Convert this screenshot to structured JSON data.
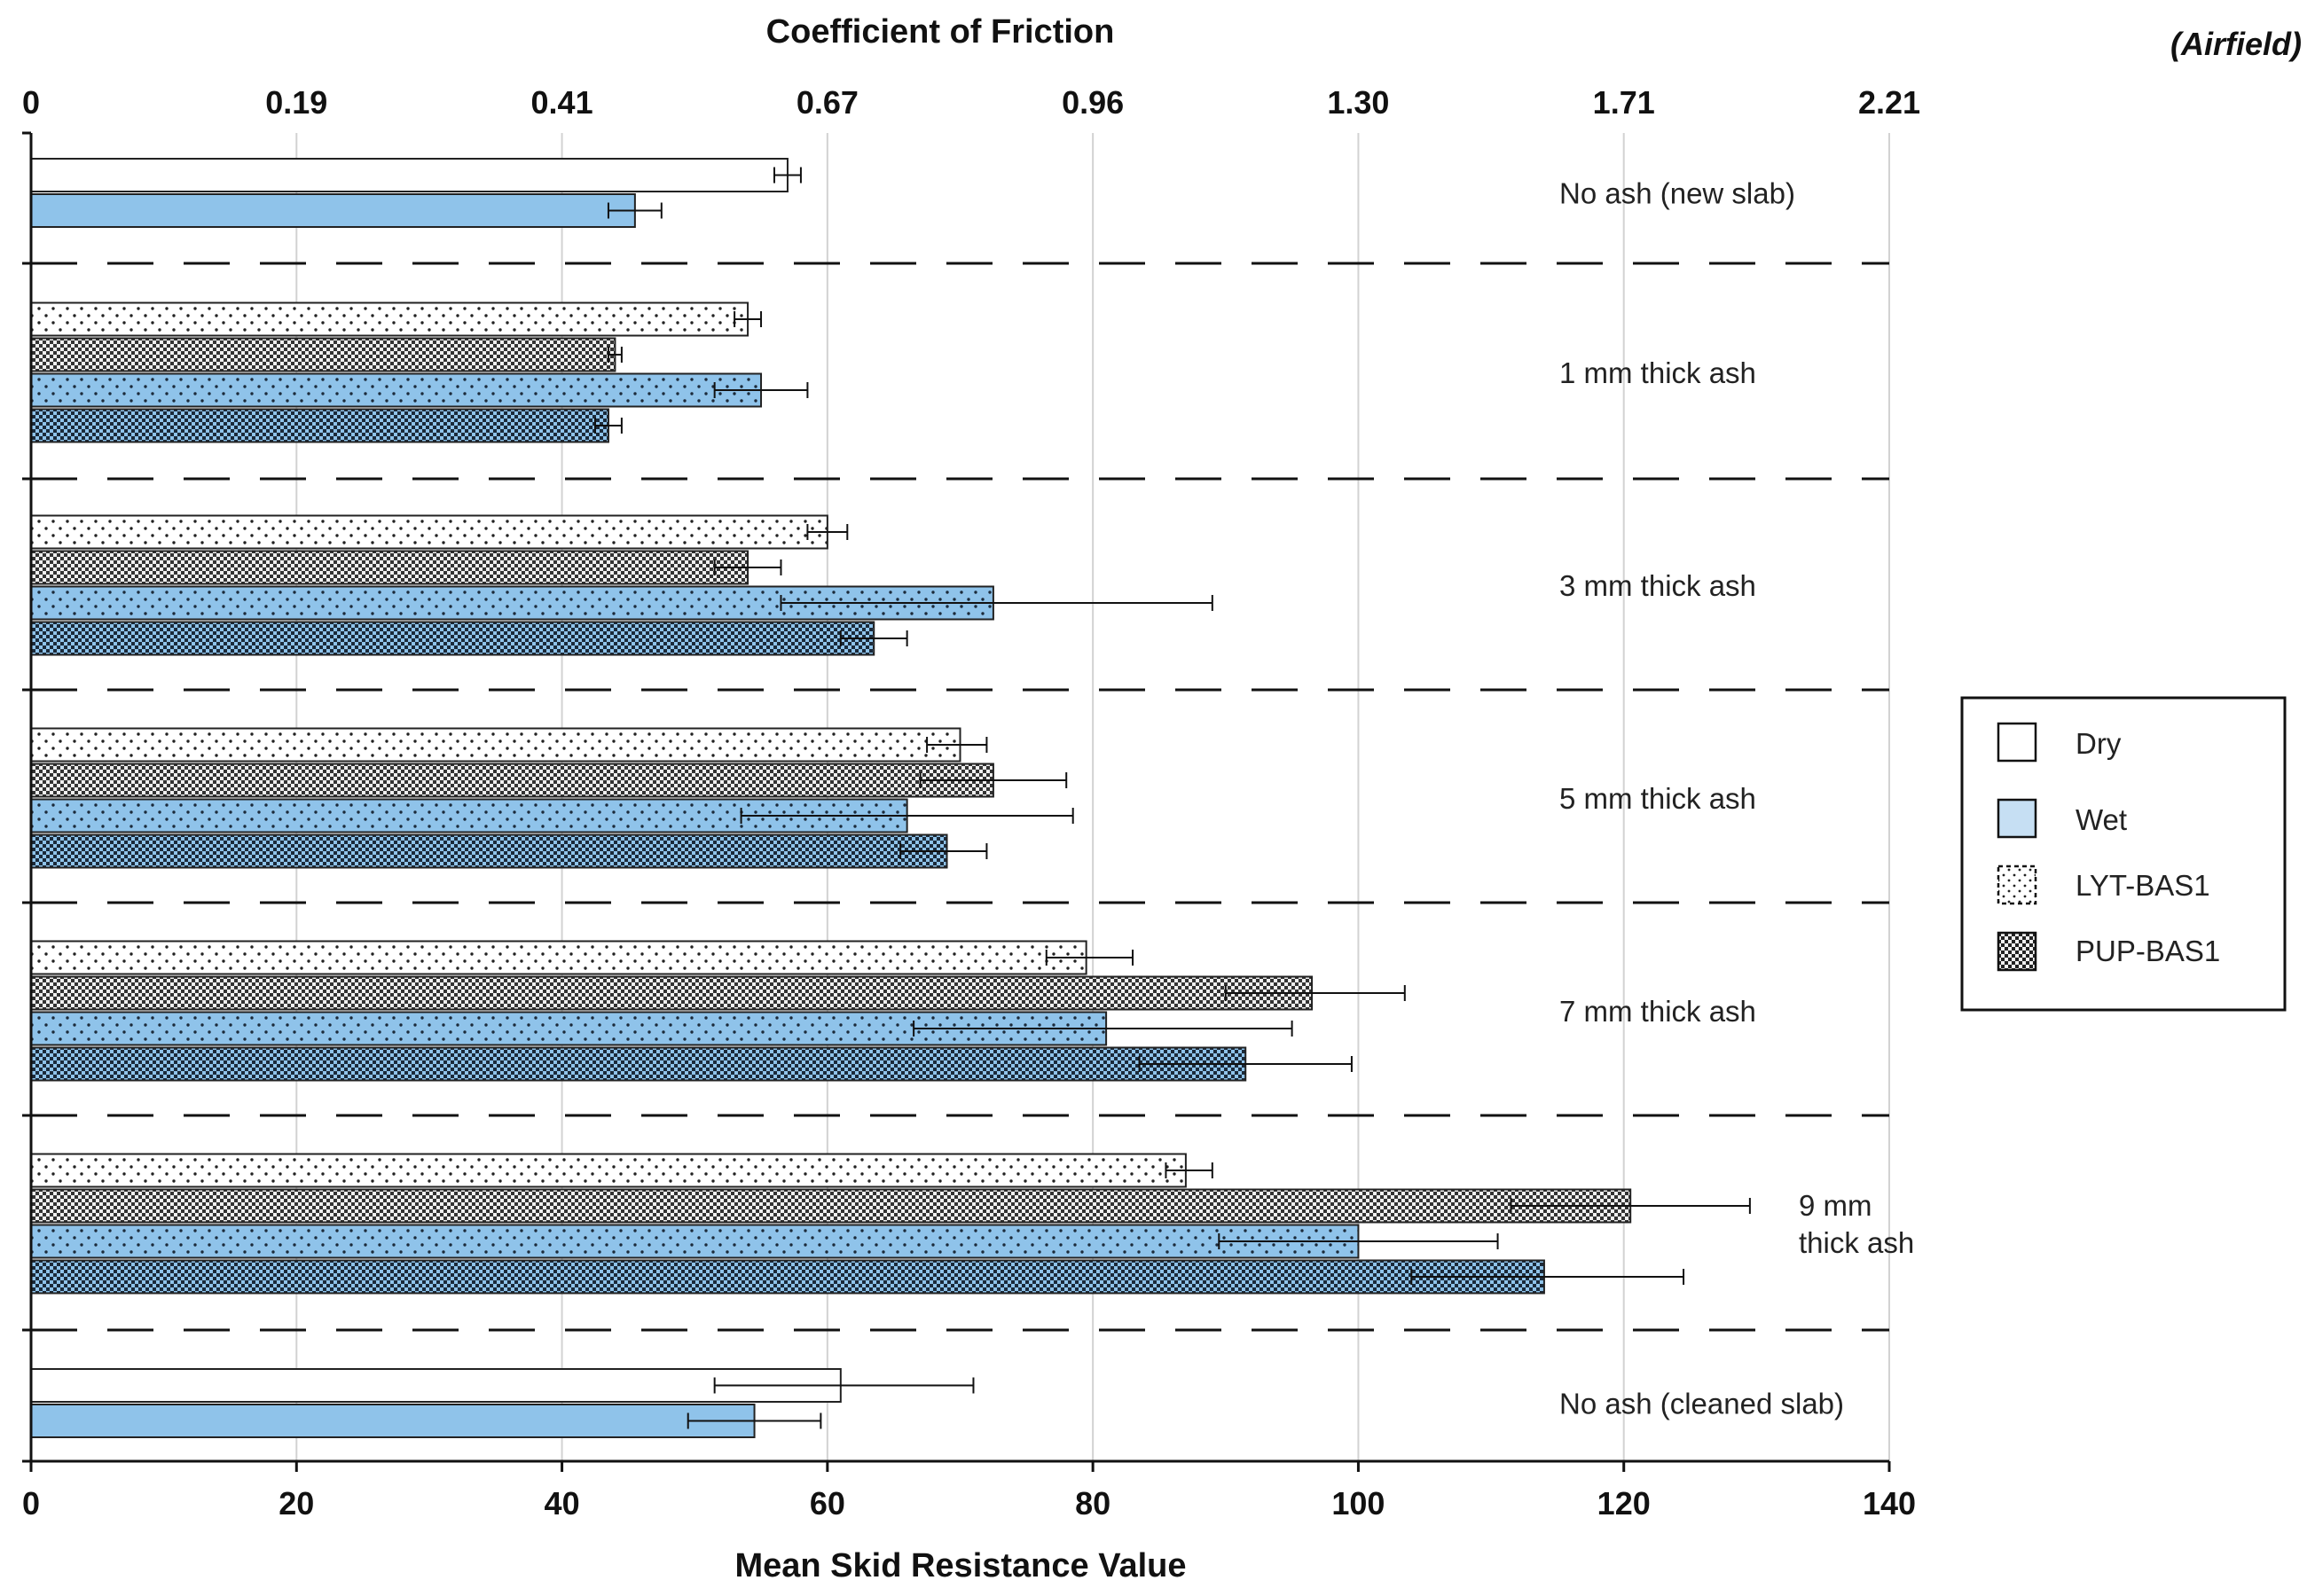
{
  "chart_data": {
    "type": "bar",
    "orientation": "horizontal",
    "title": "",
    "top_axis_label": "Coefficient of Friction",
    "top_axis_note": "(Airfield)",
    "top_tick_labels": [
      "0",
      "0.19",
      "0.41",
      "0.67",
      "0.96",
      "1.30",
      "1.71",
      "2.21"
    ],
    "xlabel": "Mean Skid Resistance Value",
    "xlim": [
      0,
      140
    ],
    "xticks": [
      0,
      20,
      40,
      60,
      80,
      100,
      120,
      140
    ],
    "grid": true,
    "legend_position": "right",
    "legend": [
      {
        "key": "dry",
        "label": "Dry",
        "fill": "#ffffff",
        "pattern": "none"
      },
      {
        "key": "wet",
        "label": "Wet",
        "fill": "#c6dff3",
        "pattern": "none"
      },
      {
        "key": "lyt",
        "label": "LYT-BAS1",
        "fill": "#ffffff",
        "pattern": "dots"
      },
      {
        "key": "pup",
        "label": "PUP-BAS1",
        "fill": "#ffffff",
        "pattern": "checker"
      }
    ],
    "groups": [
      {
        "label_lines": [
          "No ash (new slab)"
        ],
        "bars": [
          {
            "series": "Dry",
            "condition": "dry",
            "ash": "none",
            "value": 57,
            "err_low": 56,
            "err_high": 58
          },
          {
            "series": "Wet",
            "condition": "wet",
            "ash": "none",
            "value": 45.5,
            "err_low": 43.5,
            "err_high": 47.5
          }
        ]
      },
      {
        "label_lines": [
          "1 mm thick ash"
        ],
        "bars": [
          {
            "series": "Dry LYT-BAS1",
            "condition": "dry",
            "ash": "lyt",
            "value": 54,
            "err_low": 53,
            "err_high": 55
          },
          {
            "series": "Dry PUP-BAS1",
            "condition": "dry",
            "ash": "pup",
            "value": 44,
            "err_low": 43.5,
            "err_high": 44.5
          },
          {
            "series": "Wet LYT-BAS1",
            "condition": "wet",
            "ash": "lyt",
            "value": 55,
            "err_low": 51.5,
            "err_high": 58.5
          },
          {
            "series": "Wet PUP-BAS1",
            "condition": "wet",
            "ash": "pup",
            "value": 43.5,
            "err_low": 42.5,
            "err_high": 44.5
          }
        ]
      },
      {
        "label_lines": [
          "3 mm thick ash"
        ],
        "bars": [
          {
            "series": "Dry LYT-BAS1",
            "condition": "dry",
            "ash": "lyt",
            "value": 60,
            "err_low": 58.5,
            "err_high": 61.5
          },
          {
            "series": "Dry PUP-BAS1",
            "condition": "dry",
            "ash": "pup",
            "value": 54,
            "err_low": 51.5,
            "err_high": 56.5
          },
          {
            "series": "Wet LYT-BAS1",
            "condition": "wet",
            "ash": "lyt",
            "value": 72.5,
            "err_low": 56.5,
            "err_high": 89
          },
          {
            "series": "Wet PUP-BAS1",
            "condition": "wet",
            "ash": "pup",
            "value": 63.5,
            "err_low": 61,
            "err_high": 66
          }
        ]
      },
      {
        "label_lines": [
          "5 mm thick ash"
        ],
        "bars": [
          {
            "series": "Dry LYT-BAS1",
            "condition": "dry",
            "ash": "lyt",
            "value": 70,
            "err_low": 67.5,
            "err_high": 72
          },
          {
            "series": "Dry PUP-BAS1",
            "condition": "dry",
            "ash": "pup",
            "value": 72.5,
            "err_low": 67,
            "err_high": 78
          }
        ]
      },
      {
        "label_lines": [
          "7 mm thick ash"
        ],
        "bars": [
          {
            "series": "Dry LYT-BAS1",
            "condition": "dry",
            "ash": "lyt",
            "value": 79.5,
            "err_low": 76.5,
            "err_high": 83
          },
          {
            "series": "Dry PUP-BAS1",
            "condition": "dry",
            "ash": "pup",
            "value": 96.5,
            "err_low": 90,
            "err_high": 103.5
          },
          {
            "series": "Wet LYT-BAS1",
            "condition": "wet",
            "ash": "lyt",
            "value": 81,
            "err_low": 66.5,
            "err_high": 95
          },
          {
            "series": "Wet PUP-BAS1",
            "condition": "wet",
            "ash": "pup",
            "value": 91.5,
            "err_low": 83.5,
            "err_high": 99.5
          }
        ]
      },
      {
        "label_lines": [
          "9 mm",
          "thick ash"
        ],
        "bars": [
          {
            "series": "Dry LYT-BAS1",
            "condition": "dry",
            "ash": "lyt",
            "value": 87,
            "err_low": 85.5,
            "err_high": 89
          },
          {
            "series": "Dry PUP-BAS1",
            "condition": "dry",
            "ash": "pup",
            "value": 120.5,
            "err_low": 111.5,
            "err_high": 129.5
          },
          {
            "series": "Wet LYT-BAS1",
            "condition": "wet",
            "ash": "lyt",
            "value": 100,
            "err_low": 89.5,
            "err_high": 110.5
          },
          {
            "series": "Wet PUP-BAS1",
            "condition": "wet",
            "ash": "pup",
            "value": 114,
            "err_low": 104,
            "err_high": 124.5
          }
        ]
      },
      {
        "label_lines": [
          "No ash (cleaned slab)"
        ],
        "bars": [
          {
            "series": "Dry",
            "condition": "dry",
            "ash": "none",
            "value": 61,
            "err_low": 51.5,
            "err_high": 71
          },
          {
            "series": "Wet",
            "condition": "wet",
            "ash": "none",
            "value": 54.5,
            "err_low": 49.5,
            "err_high": 59.5
          }
        ]
      }
    ],
    "extra_bars_5mm": [
      {
        "series": "Wet LYT-BAS1",
        "condition": "wet",
        "ash": "lyt",
        "value": 66,
        "err_low": 53.5,
        "err_high": 78.5
      },
      {
        "series": "Wet PUP-BAS1",
        "condition": "wet",
        "ash": "pup",
        "value": 69,
        "err_low": 65.5,
        "err_high": 72
      }
    ]
  }
}
